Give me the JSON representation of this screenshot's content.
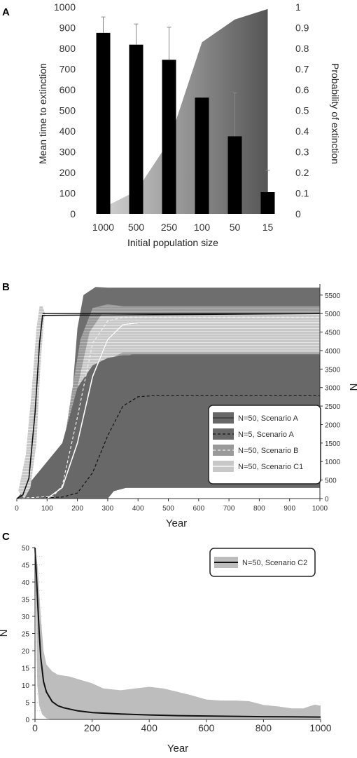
{
  "panels": {
    "a": "A",
    "b": "B",
    "c": "C"
  },
  "chart_data": [
    {
      "panel": "A",
      "type": "bar",
      "title": "",
      "xlabel": "Initial population size",
      "ylabel": "Mean time to extinction",
      "y2label": "Probability of extinction",
      "categories": [
        "1000",
        "500",
        "250",
        "100",
        "50",
        "15"
      ],
      "ylim": [
        0,
        1000
      ],
      "yticks": [
        0,
        100,
        200,
        300,
        400,
        500,
        600,
        700,
        800,
        900,
        1000
      ],
      "y2lim": [
        0,
        1
      ],
      "y2ticks": [
        "0",
        "0.1",
        "0.2",
        "0.3",
        "0.4",
        "0.5",
        "0.6",
        "0.7",
        "0.8",
        "0.9",
        "1"
      ],
      "bars": {
        "values": [
          875,
          818,
          745,
          562,
          375,
          105
        ],
        "error_upper": [
          952,
          918,
          902,
          790,
          585,
          210
        ],
        "color": "#000000"
      },
      "area": {
        "axis": "secondary",
        "values": [
          0.03,
          0.11,
          0.35,
          0.83,
          0.94,
          0.99
        ],
        "color_light": "#d2d2d2",
        "color_dark": "#555555"
      },
      "grid": false
    },
    {
      "panel": "B",
      "type": "area",
      "xlabel": "Year",
      "ylabel": "N",
      "xlim": [
        0,
        1000
      ],
      "ylim": [
        0,
        5800
      ],
      "xticks": [
        0,
        100,
        200,
        300,
        400,
        500,
        600,
        700,
        800,
        900,
        1000
      ],
      "yticks": [
        0,
        500,
        1000,
        1500,
        2000,
        2500,
        3000,
        3500,
        4000,
        4500,
        5000,
        5500
      ],
      "y_axis_side": "right",
      "legend_position": "right",
      "series": [
        {
          "name": "N=50, Scenario A",
          "style": "solid-dark",
          "color": "#686868",
          "mean": [
            [
              0,
              0
            ],
            [
              100,
              0
            ],
            [
              150,
              300
            ],
            [
              200,
              1500
            ],
            [
              250,
              3300
            ],
            [
              300,
              4300
            ],
            [
              350,
              4700
            ],
            [
              400,
              4750
            ],
            [
              1000,
              4750
            ]
          ],
          "upper": [
            [
              0,
              0
            ],
            [
              100,
              0
            ],
            [
              150,
              800
            ],
            [
              180,
              2500
            ],
            [
              200,
              4600
            ],
            [
              220,
              5500
            ],
            [
              260,
              5720
            ],
            [
              300,
              5700
            ],
            [
              1000,
              5700
            ]
          ],
          "lower": [
            [
              0,
              0
            ],
            [
              300,
              0
            ],
            [
              320,
              200
            ],
            [
              360,
              290
            ],
            [
              1000,
              290
            ]
          ]
        },
        {
          "name": "N=5, Scenario A",
          "style": "dashed-dark",
          "color": "#111111",
          "mean": [
            [
              0,
              0
            ],
            [
              150,
              40
            ],
            [
              200,
              150
            ],
            [
              250,
              700
            ],
            [
              300,
              1700
            ],
            [
              350,
              2500
            ],
            [
              400,
              2750
            ],
            [
              450,
              2780
            ],
            [
              1000,
              2780
            ]
          ]
        },
        {
          "name": "N=50, Scenario B",
          "style": "dashed-light",
          "color": "#dddddd",
          "mean": [
            [
              0,
              0
            ],
            [
              120,
              60
            ],
            [
              150,
              350
            ],
            [
              200,
              2200
            ],
            [
              250,
              4200
            ],
            [
              300,
              4800
            ],
            [
              350,
              4900
            ],
            [
              1000,
              4900
            ]
          ]
        },
        {
          "name": "N=50, Scenario C1",
          "style": "solid-light",
          "color": "#bbbbbb",
          "mean": [
            [
              0,
              0
            ],
            [
              100,
              0
            ],
            [
              150,
              300
            ],
            [
              200,
              1500
            ],
            [
              250,
              3300
            ],
            [
              300,
              4300
            ],
            [
              350,
              4700
            ],
            [
              400,
              4750
            ],
            [
              1000,
              4750
            ]
          ]
        },
        {
          "name": "",
          "style": "solid-black",
          "color": "#111111",
          "mean": [
            [
              0,
              0
            ],
            [
              20,
              100
            ],
            [
              40,
              550
            ],
            [
              60,
              2300
            ],
            [
              75,
              4200
            ],
            [
              85,
              4950
            ],
            [
              1000,
              5000
            ]
          ]
        }
      ],
      "band_a": {
        "upper": [
          [
            150,
            1500
          ],
          [
            200,
            3000
          ],
          [
            250,
            3600
          ],
          [
            300,
            3800
          ],
          [
            350,
            3870
          ],
          [
            1000,
            3870
          ]
        ],
        "lower": [
          [
            0,
            0
          ],
          [
            300,
            0
          ],
          [
            320,
            200
          ],
          [
            360,
            290
          ],
          [
            1000,
            290
          ]
        ]
      },
      "band_b": {
        "upper": [
          [
            110,
            150
          ],
          [
            150,
            1200
          ],
          [
            180,
            2800
          ],
          [
            210,
            4300
          ],
          [
            250,
            5150
          ],
          [
            300,
            5250
          ],
          [
            350,
            5200
          ],
          [
            1000,
            5200
          ]
        ],
        "lower": [
          [
            130,
            0
          ],
          [
            170,
            300
          ],
          [
            220,
            1400
          ],
          [
            260,
            2500
          ],
          [
            300,
            3200
          ],
          [
            340,
            3750
          ],
          [
            380,
            3900
          ],
          [
            1000,
            3900
          ]
        ]
      },
      "band_c1": {
        "upper": [
          [
            120,
            200
          ],
          [
            160,
            1200
          ],
          [
            200,
            3000
          ],
          [
            240,
            4500
          ],
          [
            280,
            4980
          ],
          [
            330,
            5020
          ],
          [
            1000,
            5020
          ]
        ],
        "lower": [
          [
            140,
            0
          ],
          [
            180,
            600
          ],
          [
            220,
            1900
          ],
          [
            260,
            3100
          ],
          [
            300,
            3750
          ],
          [
            350,
            3950
          ],
          [
            1000,
            3950
          ]
        ]
      }
    },
    {
      "panel": "C",
      "type": "line",
      "xlabel": "Year",
      "ylabel": "N",
      "xlim": [
        0,
        1000
      ],
      "ylim": [
        0,
        50
      ],
      "xticks": [
        0,
        200,
        400,
        600,
        800,
        1000
      ],
      "yticks": [
        0,
        5,
        10,
        15,
        20,
        25,
        30,
        35,
        40,
        45,
        50
      ],
      "legend_position": "top-right",
      "series": [
        {
          "name": "N=50, Scenario C2",
          "color": "#111111",
          "mean": [
            [
              0,
              50
            ],
            [
              5,
              42
            ],
            [
              10,
              33
            ],
            [
              15,
              25
            ],
            [
              20,
              18
            ],
            [
              30,
              11
            ],
            [
              40,
              8
            ],
            [
              60,
              5.2
            ],
            [
              80,
              4
            ],
            [
              100,
              3.4
            ],
            [
              150,
              2.5
            ],
            [
              200,
              2
            ],
            [
              300,
              1.6
            ],
            [
              400,
              1.3
            ],
            [
              500,
              1.1
            ],
            [
              600,
              1
            ],
            [
              700,
              0.9
            ],
            [
              800,
              0.8
            ],
            [
              900,
              0.75
            ],
            [
              1000,
              0.7
            ]
          ]
        }
      ],
      "band": {
        "color": "#bdbdbd",
        "upper": [
          [
            0,
            50
          ],
          [
            10,
            44
          ],
          [
            20,
            30
          ],
          [
            30,
            20
          ],
          [
            40,
            16
          ],
          [
            60,
            14
          ],
          [
            80,
            13
          ],
          [
            120,
            12.5
          ],
          [
            160,
            11.5
          ],
          [
            200,
            10.5
          ],
          [
            240,
            9
          ],
          [
            300,
            8.5
          ],
          [
            350,
            9
          ],
          [
            400,
            9.5
          ],
          [
            450,
            9
          ],
          [
            500,
            8
          ],
          [
            550,
            7
          ],
          [
            600,
            5.8
          ],
          [
            650,
            5.5
          ],
          [
            700,
            5.5
          ],
          [
            750,
            5.3
          ],
          [
            800,
            4.2
          ],
          [
            850,
            3.8
          ],
          [
            900,
            3.2
          ],
          [
            940,
            3.2
          ],
          [
            960,
            3.8
          ],
          [
            980,
            4.3
          ],
          [
            1000,
            4
          ]
        ],
        "lower": [
          [
            0,
            50
          ],
          [
            8,
            10
          ],
          [
            15,
            4
          ],
          [
            25,
            1.5
          ],
          [
            40,
            0.3
          ],
          [
            60,
            0
          ],
          [
            1000,
            0
          ]
        ]
      }
    }
  ]
}
